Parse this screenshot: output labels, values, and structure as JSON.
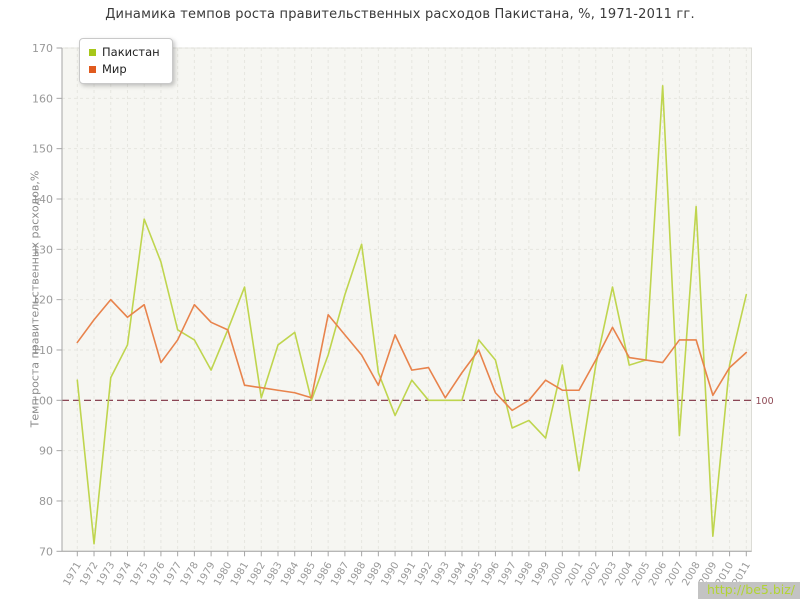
{
  "title": "Динамика темпов роста правительственных расходов Пакистана, %, 1971-2011 гг.",
  "legend": {
    "items": [
      {
        "label": "Пакистан",
        "color": "#a7c71a"
      },
      {
        "label": "Мир",
        "color": "#e05a1e"
      }
    ]
  },
  "watermark": "http://be5.biz/",
  "colors": {
    "pakistan_line": "#bfd54e",
    "world_line": "#e8834c",
    "reference_line": "#7c2d3f",
    "plot_background": "#f6f6f2",
    "gridline": "#e6e6e0",
    "axis": "#a6a6a6",
    "tick_label": "#999999"
  },
  "chart_data": {
    "type": "line",
    "title": "Динамика темпов роста правительственных расходов Пакистана, %, 1971-2011 гг.",
    "xlabel": "",
    "ylabel": "Темп роста правительственных расходов,%",
    "ylim": [
      70,
      170
    ],
    "ytick_step": 10,
    "grid": true,
    "legend_position": "top-left",
    "reference_line": {
      "value": 100,
      "label": "100"
    },
    "x": [
      1971,
      1972,
      1973,
      1974,
      1975,
      1976,
      1977,
      1978,
      1979,
      1980,
      1981,
      1982,
      1983,
      1984,
      1985,
      1986,
      1987,
      1988,
      1989,
      1990,
      1991,
      1992,
      1993,
      1994,
      1995,
      1996,
      1997,
      1998,
      1999,
      2000,
      2001,
      2002,
      2003,
      2004,
      2005,
      2006,
      2007,
      2008,
      2009,
      2010,
      2011
    ],
    "series": [
      {
        "name": "Пакистан",
        "color": "#bfd54e",
        "values": [
          104,
          71.5,
          104.5,
          111,
          136,
          127.5,
          114,
          112,
          106,
          114,
          122.5,
          100.5,
          111,
          113.5,
          100,
          109,
          121,
          131,
          105.5,
          97,
          104,
          100,
          100,
          100,
          112,
          108,
          94.5,
          96,
          92.5,
          107,
          86,
          107,
          122.5,
          107,
          108,
          162.5,
          93,
          138.5,
          73,
          107,
          121
        ]
      },
      {
        "name": "Мир",
        "color": "#e8834c",
        "values": [
          111.5,
          116,
          120,
          116.5,
          119,
          107.5,
          112,
          119,
          115.5,
          114,
          103,
          102.5,
          102,
          101.5,
          100.5,
          117,
          113,
          109,
          103,
          113,
          106,
          106.5,
          100.5,
          105.5,
          110,
          101.5,
          98,
          100,
          104,
          102,
          102,
          108,
          114.5,
          108.5,
          108,
          107.5,
          112,
          112,
          101,
          106.5,
          109.5
        ]
      }
    ]
  }
}
